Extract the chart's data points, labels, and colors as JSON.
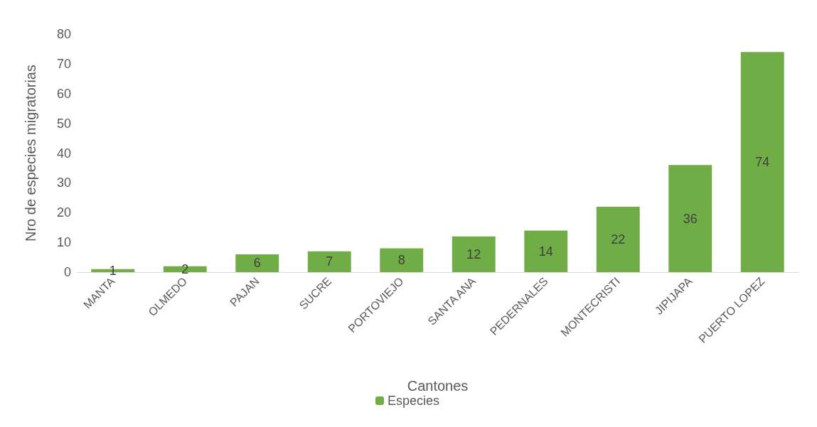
{
  "chart_data": {
    "type": "bar",
    "xlabel": "Cantones",
    "ylabel": "Nro de especies migratorias",
    "categories": [
      "MANTA",
      "OLMEDO",
      "PAJAN",
      "SUCRE",
      "PORTOVIEJO",
      "SANTA ANA",
      "PEDERNALES",
      "MONTECRISTI",
      "JIPIJAPA",
      "PUERTO LOPEZ"
    ],
    "series": [
      {
        "name": "Especies",
        "color": "#70ad47",
        "values": [
          1,
          2,
          6,
          7,
          8,
          12,
          14,
          22,
          36,
          74
        ]
      }
    ],
    "ylim": [
      0,
      80
    ],
    "yticks": [
      0,
      10,
      20,
      30,
      40,
      50,
      60,
      70,
      80
    ],
    "grid": false,
    "legend": "bottom",
    "data_labels": true
  }
}
